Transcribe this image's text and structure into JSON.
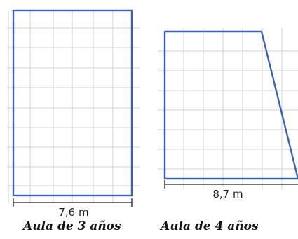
{
  "classroom_3": {
    "dimension_label": "7,6 m",
    "caption": "Aula de 3 años"
  },
  "classroom_4": {
    "dimension_label": "8,7 m",
    "caption": "Aula de 4 años"
  },
  "colors": {
    "shape_outline": "#3b62b0",
    "grid": "#d2d2d2",
    "dimension": "#222222"
  }
}
